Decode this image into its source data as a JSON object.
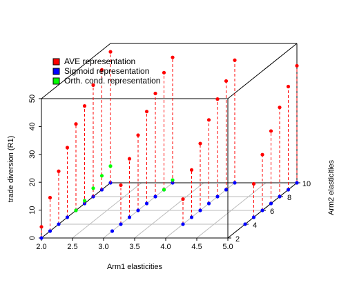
{
  "chart_data": {
    "type": "scatter3d",
    "xlabel": "Arm1 elasticities",
    "ylabel": "Arm2 elasticities",
    "zlabel": "trade diversion (R1)",
    "xlim": [
      2,
      5
    ],
    "ylim": [
      2,
      10
    ],
    "zlim": [
      0,
      50
    ],
    "xticks": [
      {
        "value": 2,
        "label": "2.0"
      },
      {
        "value": 2.5,
        "label": "2.5"
      },
      {
        "value": 3,
        "label": "3.0"
      },
      {
        "value": 3.5,
        "label": "3.5"
      },
      {
        "value": 4,
        "label": "4.0"
      },
      {
        "value": 4.5,
        "label": "4.5"
      },
      {
        "value": 5,
        "label": "5.0"
      }
    ],
    "yticks": [
      2,
      4,
      6,
      8,
      10
    ],
    "zticks": [
      0,
      10,
      20,
      30,
      40,
      50
    ],
    "grid": true,
    "legend": "top-left",
    "series": [
      {
        "name": "AVE representation",
        "color": "#ff0000",
        "x": [
          2,
          2,
          2,
          2,
          2,
          2,
          2,
          2,
          2,
          3,
          3,
          3,
          3,
          3,
          3,
          3,
          4,
          4,
          4,
          4,
          4,
          4,
          4,
          5,
          5,
          5,
          5,
          5,
          5
        ],
        "y": [
          2,
          3,
          4,
          5,
          6,
          7,
          8,
          9,
          10,
          4,
          5,
          6,
          7,
          8,
          9,
          10,
          4,
          5,
          6,
          7,
          8,
          9,
          10,
          5,
          6,
          7,
          8,
          9,
          10
        ],
        "z": [
          4,
          12,
          19,
          25,
          31,
          35,
          40,
          43,
          47,
          14,
          21,
          27,
          33,
          37,
          42,
          45,
          9,
          17,
          24,
          30,
          35,
          39,
          44,
          12,
          20,
          26,
          32,
          37,
          42
        ]
      },
      {
        "name": "Sigmoid representation",
        "color": "#0000ff",
        "x": [
          2,
          2,
          2,
          2,
          2,
          2,
          2,
          2,
          2,
          3,
          3,
          3,
          3,
          3,
          3,
          3,
          3,
          4,
          4,
          4,
          4,
          4,
          4,
          4,
          5,
          5,
          5,
          5,
          5,
          5,
          5
        ],
        "y": [
          2,
          3,
          4,
          5,
          6,
          7,
          8,
          9,
          10,
          3,
          4,
          5,
          6,
          7,
          8,
          9,
          10,
          4,
          5,
          6,
          7,
          8,
          9,
          10,
          4,
          5,
          6,
          7,
          8,
          9,
          10
        ],
        "z": [
          0,
          0,
          0,
          0,
          0,
          0,
          0,
          0,
          0,
          0,
          0,
          0,
          0,
          0,
          0,
          0,
          0,
          0,
          0,
          0,
          0,
          0,
          0,
          0,
          0,
          0,
          0,
          0,
          0,
          0,
          0
        ]
      },
      {
        "name": "Orth. cond. representation",
        "color": "#00ff00",
        "x": [
          2,
          2,
          2,
          2,
          2,
          3,
          3
        ],
        "y": [
          6,
          7,
          8,
          9,
          10,
          9,
          10
        ],
        "z": [
          0,
          1,
          3,
          5,
          6,
          0,
          1
        ]
      }
    ]
  }
}
